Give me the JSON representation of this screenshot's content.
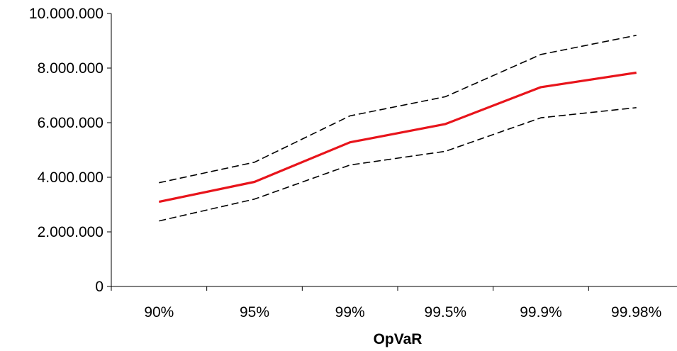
{
  "chart_data": {
    "type": "line",
    "title": "",
    "xlabel": "OpVaR",
    "ylabel": "",
    "categories": [
      "90%",
      "95%",
      "99%",
      "99.5%",
      "99.9%",
      "99.98%"
    ],
    "y_ticks": [
      "0",
      "2.000.000",
      "4.000.000",
      "6.000.000",
      "8.000.000",
      "10.000.000"
    ],
    "ylim": [
      0,
      10000000
    ],
    "grid": false,
    "legend": "none",
    "series": [
      {
        "key": "upper",
        "style": "dashed",
        "color": "#000000",
        "values": [
          3800000,
          4550000,
          6250000,
          6950000,
          8500000,
          9200000
        ]
      },
      {
        "key": "estimate",
        "style": "solid",
        "color": "#e8141b",
        "values": [
          3100000,
          3830000,
          5280000,
          5950000,
          7300000,
          7830000
        ]
      },
      {
        "key": "lower",
        "style": "dashed",
        "color": "#000000",
        "values": [
          2400000,
          3200000,
          4450000,
          4950000,
          6180000,
          6550000
        ]
      }
    ]
  }
}
